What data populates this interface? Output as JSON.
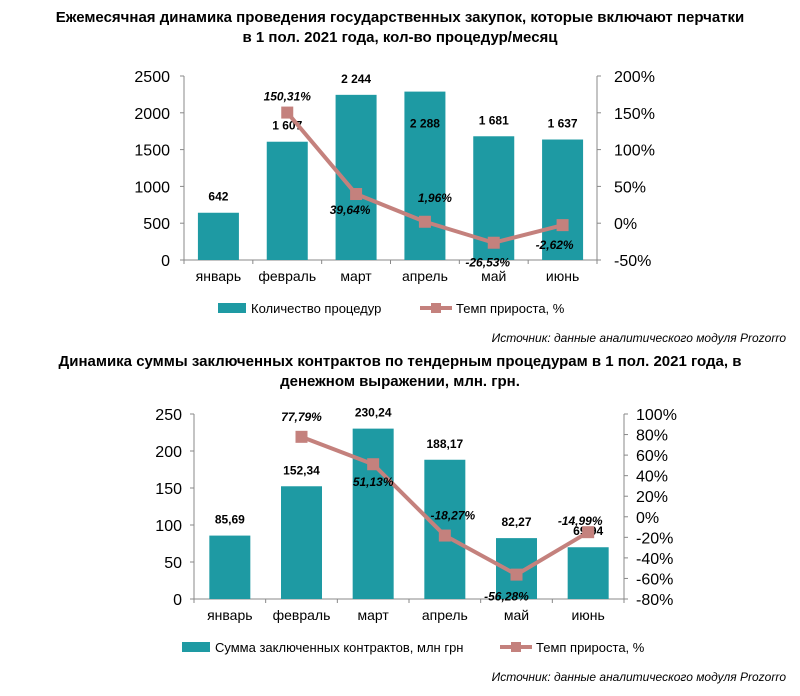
{
  "chart_data": [
    {
      "type": "bar",
      "title_line1": "Ежемесячная динамика проведения государственных закупок, которые включают перчатки",
      "title_line2": "в 1 пол. 2021 года, кол-во процедур/месяц",
      "categories": [
        "январь",
        "февраль",
        "март",
        "апрель",
        "май",
        "июнь"
      ],
      "series": [
        {
          "name": "Количество  процедур",
          "type": "bar",
          "axis": "left",
          "values": [
            642,
            1607,
            2244,
            2288,
            1681,
            1637
          ],
          "labels": [
            "642",
            "1 607",
            "2 244",
            "2 288",
            "1 681",
            "1 637"
          ]
        },
        {
          "name": "Темп прироста, %",
          "type": "line",
          "axis": "right",
          "values": [
            null,
            150.31,
            39.64,
            1.96,
            -26.53,
            -2.62
          ],
          "labels": [
            "",
            "150,31%",
            "39,64%",
            "1,96%",
            "-26,53%",
            "-2,62%"
          ]
        }
      ],
      "ylim_left": [
        0,
        2500
      ],
      "yticks_left": [
        "0",
        "500",
        "1000",
        "1500",
        "2000",
        "2500"
      ],
      "ylim_right": [
        -50,
        200
      ],
      "yticks_right": [
        "-50%",
        "0%",
        "50%",
        "100%",
        "150%",
        "200%"
      ],
      "grid": false,
      "legend": "bottom",
      "source": "Источник: данные аналитического модуля Prozorro",
      "colors": {
        "bar": "#1e9aa3",
        "line": "#c4817d"
      }
    },
    {
      "type": "bar",
      "title_line1": "Динамика суммы заключенных контрактов по тендерным процедурам в 1 пол. 2021 года, в",
      "title_line2": "денежном выражении, млн. грн.",
      "categories": [
        "январь",
        "февраль",
        "март",
        "апрель",
        "май",
        "июнь"
      ],
      "series": [
        {
          "name": "Сумма заключенных  контрактов, млн грн",
          "type": "bar",
          "axis": "left",
          "values": [
            85.69,
            152.34,
            230.24,
            188.17,
            82.27,
            69.94
          ],
          "labels": [
            "85,69",
            "152,34",
            "230,24",
            "188,17",
            "82,27",
            "69,94"
          ]
        },
        {
          "name": "Темп прироста, %",
          "type": "line",
          "axis": "right",
          "values": [
            null,
            77.79,
            51.13,
            -18.27,
            -56.28,
            -14.99
          ],
          "labels": [
            "",
            "77,79%",
            "51,13%",
            "-18,27%",
            "-56,28%",
            "-14,99%"
          ]
        }
      ],
      "ylim_left": [
        0,
        250
      ],
      "yticks_left": [
        "0",
        "50",
        "100",
        "150",
        "200",
        "250"
      ],
      "ylim_right": [
        -80,
        100
      ],
      "yticks_right": [
        "-80%",
        "-60%",
        "-40%",
        "-20%",
        "0%",
        "20%",
        "40%",
        "60%",
        "80%",
        "100%"
      ],
      "grid": false,
      "legend": "bottom",
      "source": "Источник: данные аналитического модуля Prozorro",
      "colors": {
        "bar": "#1e9aa3",
        "line": "#c4817d"
      }
    }
  ]
}
